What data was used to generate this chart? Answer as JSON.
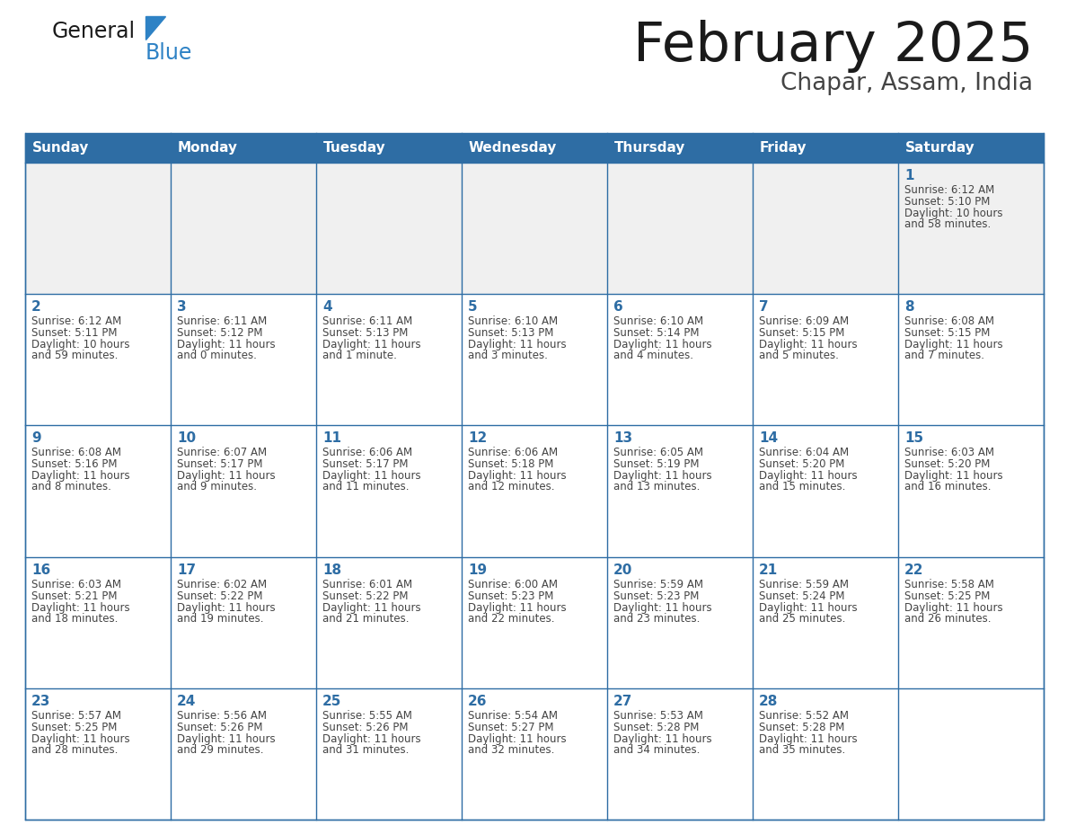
{
  "title": "February 2025",
  "subtitle": "Chapar, Assam, India",
  "days_of_week": [
    "Sunday",
    "Monday",
    "Tuesday",
    "Wednesday",
    "Thursday",
    "Friday",
    "Saturday"
  ],
  "header_bg": "#2E6DA4",
  "header_text_color": "#FFFFFF",
  "cell_bg": "#FFFFFF",
  "row0_bg": "#F0F0F0",
  "cell_border_color": "#2E6DA4",
  "day_num_color": "#2E6DA4",
  "cell_text_color": "#444444",
  "background_color": "#FFFFFF",
  "title_color": "#1a1a1a",
  "subtitle_color": "#444444",
  "logo_general_color": "#1a1a1a",
  "logo_blue_color": "#2E82C5",
  "calendar_data": [
    {
      "day": 1,
      "col": 6,
      "row": 0,
      "sunrise": "6:12 AM",
      "sunset": "5:10 PM",
      "daylight_hours": 10,
      "daylight_minutes": 58
    },
    {
      "day": 2,
      "col": 0,
      "row": 1,
      "sunrise": "6:12 AM",
      "sunset": "5:11 PM",
      "daylight_hours": 10,
      "daylight_minutes": 59
    },
    {
      "day": 3,
      "col": 1,
      "row": 1,
      "sunrise": "6:11 AM",
      "sunset": "5:12 PM",
      "daylight_hours": 11,
      "daylight_minutes": 0
    },
    {
      "day": 4,
      "col": 2,
      "row": 1,
      "sunrise": "6:11 AM",
      "sunset": "5:13 PM",
      "daylight_hours": 11,
      "daylight_minutes": 1
    },
    {
      "day": 5,
      "col": 3,
      "row": 1,
      "sunrise": "6:10 AM",
      "sunset": "5:13 PM",
      "daylight_hours": 11,
      "daylight_minutes": 3
    },
    {
      "day": 6,
      "col": 4,
      "row": 1,
      "sunrise": "6:10 AM",
      "sunset": "5:14 PM",
      "daylight_hours": 11,
      "daylight_minutes": 4
    },
    {
      "day": 7,
      "col": 5,
      "row": 1,
      "sunrise": "6:09 AM",
      "sunset": "5:15 PM",
      "daylight_hours": 11,
      "daylight_minutes": 5
    },
    {
      "day": 8,
      "col": 6,
      "row": 1,
      "sunrise": "6:08 AM",
      "sunset": "5:15 PM",
      "daylight_hours": 11,
      "daylight_minutes": 7
    },
    {
      "day": 9,
      "col": 0,
      "row": 2,
      "sunrise": "6:08 AM",
      "sunset": "5:16 PM",
      "daylight_hours": 11,
      "daylight_minutes": 8
    },
    {
      "day": 10,
      "col": 1,
      "row": 2,
      "sunrise": "6:07 AM",
      "sunset": "5:17 PM",
      "daylight_hours": 11,
      "daylight_minutes": 9
    },
    {
      "day": 11,
      "col": 2,
      "row": 2,
      "sunrise": "6:06 AM",
      "sunset": "5:17 PM",
      "daylight_hours": 11,
      "daylight_minutes": 11
    },
    {
      "day": 12,
      "col": 3,
      "row": 2,
      "sunrise": "6:06 AM",
      "sunset": "5:18 PM",
      "daylight_hours": 11,
      "daylight_minutes": 12
    },
    {
      "day": 13,
      "col": 4,
      "row": 2,
      "sunrise": "6:05 AM",
      "sunset": "5:19 PM",
      "daylight_hours": 11,
      "daylight_minutes": 13
    },
    {
      "day": 14,
      "col": 5,
      "row": 2,
      "sunrise": "6:04 AM",
      "sunset": "5:20 PM",
      "daylight_hours": 11,
      "daylight_minutes": 15
    },
    {
      "day": 15,
      "col": 6,
      "row": 2,
      "sunrise": "6:03 AM",
      "sunset": "5:20 PM",
      "daylight_hours": 11,
      "daylight_minutes": 16
    },
    {
      "day": 16,
      "col": 0,
      "row": 3,
      "sunrise": "6:03 AM",
      "sunset": "5:21 PM",
      "daylight_hours": 11,
      "daylight_minutes": 18
    },
    {
      "day": 17,
      "col": 1,
      "row": 3,
      "sunrise": "6:02 AM",
      "sunset": "5:22 PM",
      "daylight_hours": 11,
      "daylight_minutes": 19
    },
    {
      "day": 18,
      "col": 2,
      "row": 3,
      "sunrise": "6:01 AM",
      "sunset": "5:22 PM",
      "daylight_hours": 11,
      "daylight_minutes": 21
    },
    {
      "day": 19,
      "col": 3,
      "row": 3,
      "sunrise": "6:00 AM",
      "sunset": "5:23 PM",
      "daylight_hours": 11,
      "daylight_minutes": 22
    },
    {
      "day": 20,
      "col": 4,
      "row": 3,
      "sunrise": "5:59 AM",
      "sunset": "5:23 PM",
      "daylight_hours": 11,
      "daylight_minutes": 23
    },
    {
      "day": 21,
      "col": 5,
      "row": 3,
      "sunrise": "5:59 AM",
      "sunset": "5:24 PM",
      "daylight_hours": 11,
      "daylight_minutes": 25
    },
    {
      "day": 22,
      "col": 6,
      "row": 3,
      "sunrise": "5:58 AM",
      "sunset": "5:25 PM",
      "daylight_hours": 11,
      "daylight_minutes": 26
    },
    {
      "day": 23,
      "col": 0,
      "row": 4,
      "sunrise": "5:57 AM",
      "sunset": "5:25 PM",
      "daylight_hours": 11,
      "daylight_minutes": 28
    },
    {
      "day": 24,
      "col": 1,
      "row": 4,
      "sunrise": "5:56 AM",
      "sunset": "5:26 PM",
      "daylight_hours": 11,
      "daylight_minutes": 29
    },
    {
      "day": 25,
      "col": 2,
      "row": 4,
      "sunrise": "5:55 AM",
      "sunset": "5:26 PM",
      "daylight_hours": 11,
      "daylight_minutes": 31
    },
    {
      "day": 26,
      "col": 3,
      "row": 4,
      "sunrise": "5:54 AM",
      "sunset": "5:27 PM",
      "daylight_hours": 11,
      "daylight_minutes": 32
    },
    {
      "day": 27,
      "col": 4,
      "row": 4,
      "sunrise": "5:53 AM",
      "sunset": "5:28 PM",
      "daylight_hours": 11,
      "daylight_minutes": 34
    },
    {
      "day": 28,
      "col": 5,
      "row": 4,
      "sunrise": "5:52 AM",
      "sunset": "5:28 PM",
      "daylight_hours": 11,
      "daylight_minutes": 35
    }
  ]
}
